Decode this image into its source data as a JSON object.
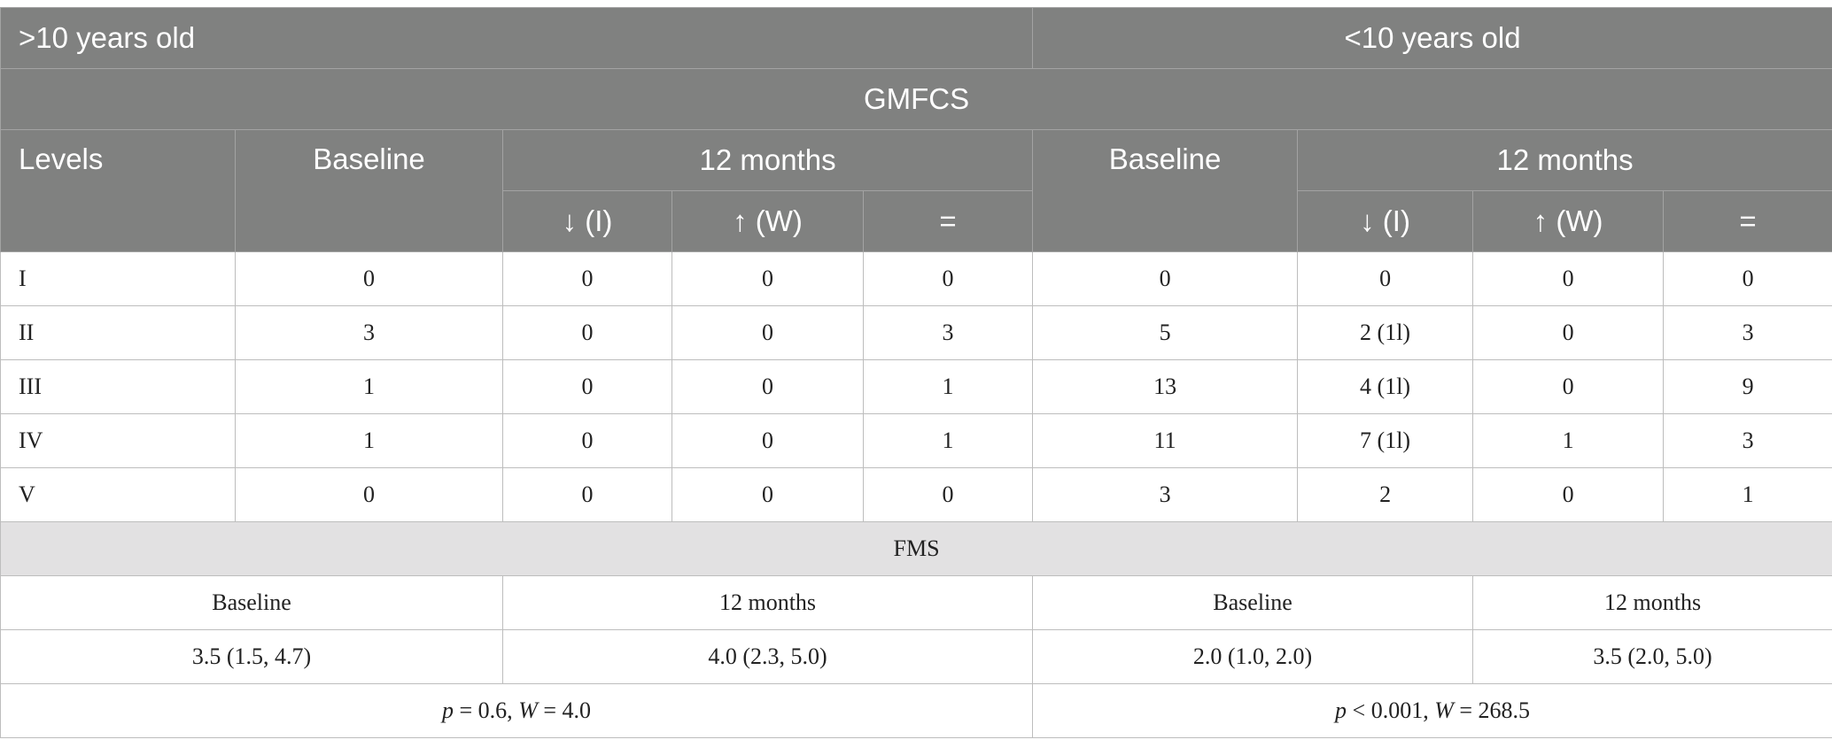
{
  "header": {
    "group_left": ">10 years old",
    "group_right": "<10 years old",
    "gmfcs": "GMFCS",
    "levels": "Levels",
    "baseline_left": "Baseline",
    "months_left": "12 months",
    "baseline_right": "Baseline",
    "months_right": "12 months",
    "sub": [
      "↓ (I)",
      "↑ (W)",
      "="
    ]
  },
  "gmfcs_rows": [
    {
      "level": "I",
      "cells": [
        "0",
        "0",
        "0",
        "0",
        "0",
        "0",
        "0",
        "0"
      ]
    },
    {
      "level": "II",
      "cells": [
        "3",
        "0",
        "0",
        "3",
        "5",
        "2 (1l)",
        "0",
        "3"
      ]
    },
    {
      "level": "III",
      "cells": [
        "1",
        "0",
        "0",
        "1",
        "13",
        "4 (1l)",
        "0",
        "9"
      ]
    },
    {
      "level": "IV",
      "cells": [
        "1",
        "0",
        "0",
        "1",
        "11",
        "7 (1l)",
        "1",
        "3"
      ]
    },
    {
      "level": "V",
      "cells": [
        "0",
        "0",
        "0",
        "0",
        "3",
        "2",
        "0",
        "1"
      ]
    }
  ],
  "fms": {
    "title": "FMS",
    "labels": [
      "Baseline",
      "12 months",
      "Baseline",
      "12 months"
    ],
    "values": [
      "3.5 (1.5, 4.7)",
      "4.0 (2.3, 5.0)",
      "2.0 (1.0, 2.0)",
      "3.5 (2.0, 5.0)"
    ],
    "stats_left": {
      "p_sym": "p",
      "p_rel": " = 0.6, ",
      "w_sym": "W",
      "w_val": " = 4.0"
    },
    "stats_right": {
      "p_sym": "p",
      "p_rel": " < 0.001, ",
      "w_sym": "W",
      "w_val": " = 268.5"
    }
  }
}
